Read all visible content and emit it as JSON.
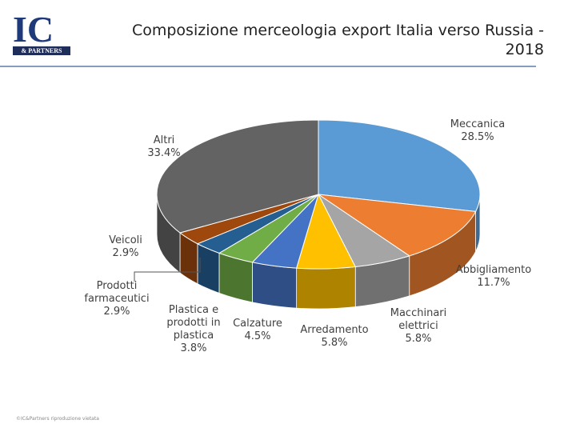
{
  "logo": {
    "mark": "IC",
    "sub": "& PARTNERS"
  },
  "footer": "©IC&Partners riproduzione vietata",
  "chart_data": {
    "type": "pie3d",
    "title": "Composizione merceologia export Italia verso Russia - 2018",
    "categories": [
      "Meccanica",
      "Abbigliamento",
      "Macchinari elettrici",
      "Arredamento",
      "Calzature",
      "Plastica e prodotti in plastica",
      "Prodotti farmaceutici",
      "Veicoli",
      "Altri"
    ],
    "values": [
      28.5,
      11.7,
      5.8,
      5.8,
      4.5,
      3.8,
      2.9,
      2.9,
      33.4
    ],
    "value_labels": [
      "28.5%",
      "11.7%",
      "5.8%",
      "5.8%",
      "4.5%",
      "3.8%",
      "2.9%",
      "2.9%",
      "33.4%"
    ],
    "colors": [
      "#5b9bd5",
      "#ed7d31",
      "#a5a5a5",
      "#ffc000",
      "#4472c4",
      "#70ad47",
      "#255e91",
      "#9e480e",
      "#636363"
    ]
  }
}
